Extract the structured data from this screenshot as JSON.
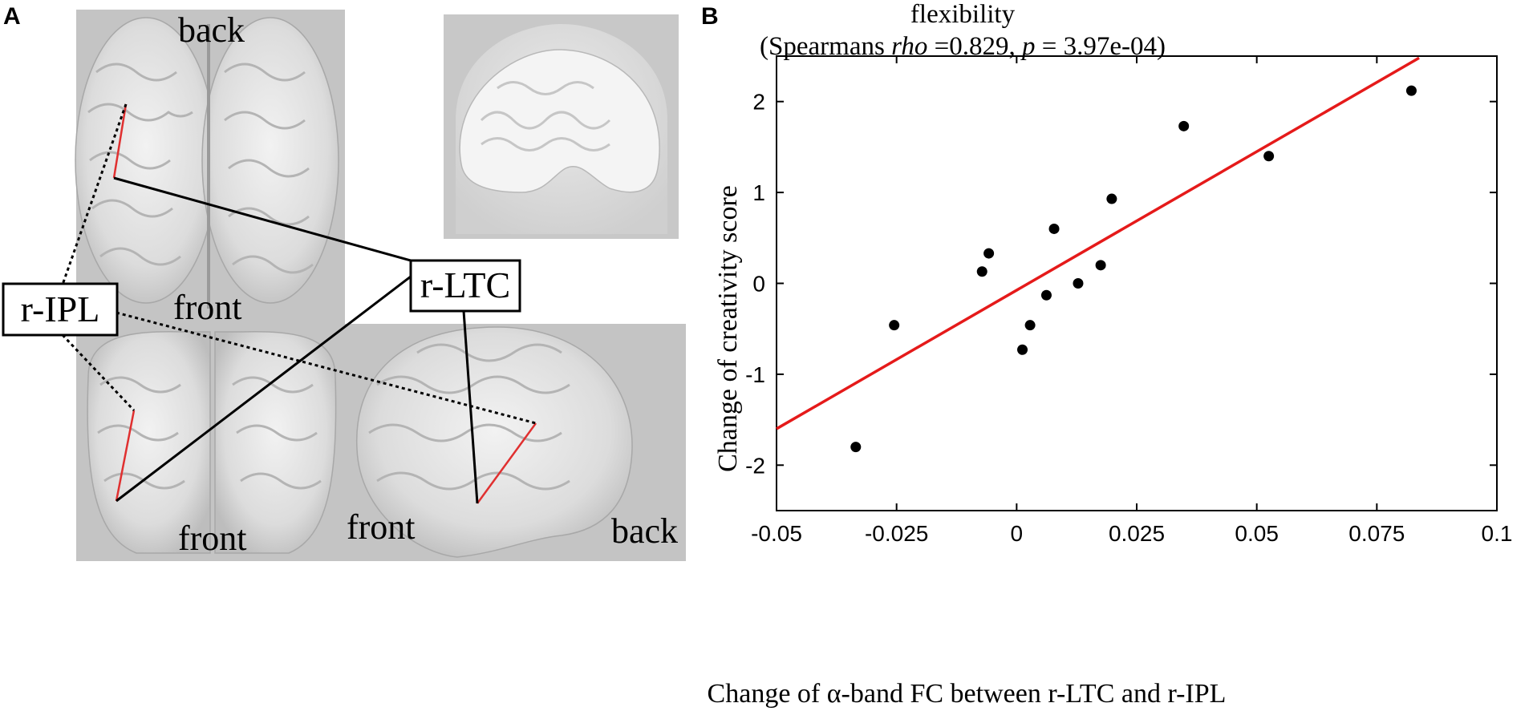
{
  "figure": {
    "panel_a_letter": "A",
    "panel_b_letter": "B",
    "panel_a": {
      "view_labels": {
        "top_back": "back",
        "top_front": "front",
        "coronal_front": "front",
        "sagittal_front": "front",
        "sagittal_back": "back"
      },
      "regions": {
        "ipl": "r-IPL",
        "ltc": "r-LTC"
      },
      "colors": {
        "panel_bg": "#c4c4c4",
        "brain": "#e8e8e8",
        "connection": "#e03030"
      }
    }
  },
  "chart_data": {
    "type": "scatter",
    "title": "flexibility",
    "subtitle": {
      "prefix": "(Spearmans ",
      "rho_symbol": "rho",
      "rho_value": " =0.829, ",
      "p_symbol": "p",
      "p_value": " = 3.97e-04)"
    },
    "xlabel": "Change of α-band FC between r-LTC and r-IPL",
    "ylabel": "Change of creativity score",
    "xlim": [
      -0.05,
      0.1
    ],
    "ylim": [
      -2.5,
      2.5
    ],
    "xticks": [
      -0.05,
      -0.025,
      0,
      0.025,
      0.05,
      0.075,
      0.1
    ],
    "xtick_labels": [
      "-0.05",
      "-0.025",
      "0",
      "0.025",
      "0.05",
      "0.075",
      "0.1"
    ],
    "yticks": [
      -2,
      -1,
      0,
      1,
      2
    ],
    "ytick_labels": [
      "-2",
      "-1",
      "0",
      "1",
      "2"
    ],
    "points": [
      {
        "x": -0.0335,
        "y": -1.8
      },
      {
        "x": -0.0255,
        "y": -0.46
      },
      {
        "x": -0.0072,
        "y": 0.13
      },
      {
        "x": -0.0058,
        "y": 0.33
      },
      {
        "x": 0.0012,
        "y": -0.73
      },
      {
        "x": 0.0028,
        "y": -0.46
      },
      {
        "x": 0.0062,
        "y": -0.13
      },
      {
        "x": 0.0078,
        "y": 0.6
      },
      {
        "x": 0.0128,
        "y": 0.0
      },
      {
        "x": 0.0175,
        "y": 0.2
      },
      {
        "x": 0.0198,
        "y": 0.93
      },
      {
        "x": 0.0348,
        "y": 1.73
      },
      {
        "x": 0.0525,
        "y": 1.4
      },
      {
        "x": 0.0822,
        "y": 2.12
      }
    ],
    "fit_line": {
      "x": [
        -0.05,
        0.0838
      ],
      "y": [
        -1.6,
        2.48
      ]
    },
    "colors": {
      "points": "#000000",
      "fit_line": "#e51a1a"
    },
    "grid": false
  }
}
